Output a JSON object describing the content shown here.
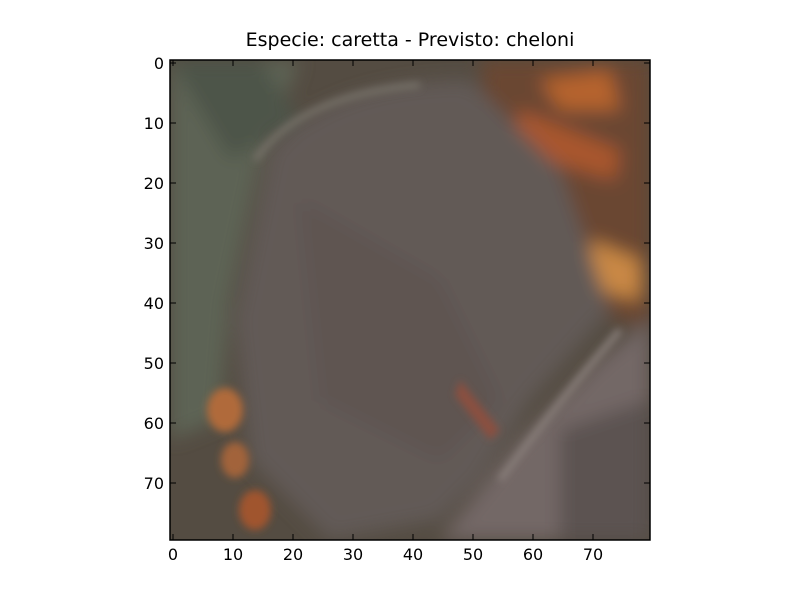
{
  "chart_data": {
    "type": "image",
    "title": "Especie: caretta - Previsto: cheloni",
    "xlim": [
      -0.5,
      79.5
    ],
    "ylim": [
      79.5,
      -0.5
    ],
    "xticks": [
      0,
      10,
      20,
      30,
      40,
      50,
      60,
      70
    ],
    "yticks": [
      0,
      10,
      20,
      30,
      40,
      50,
      60,
      70
    ]
  }
}
